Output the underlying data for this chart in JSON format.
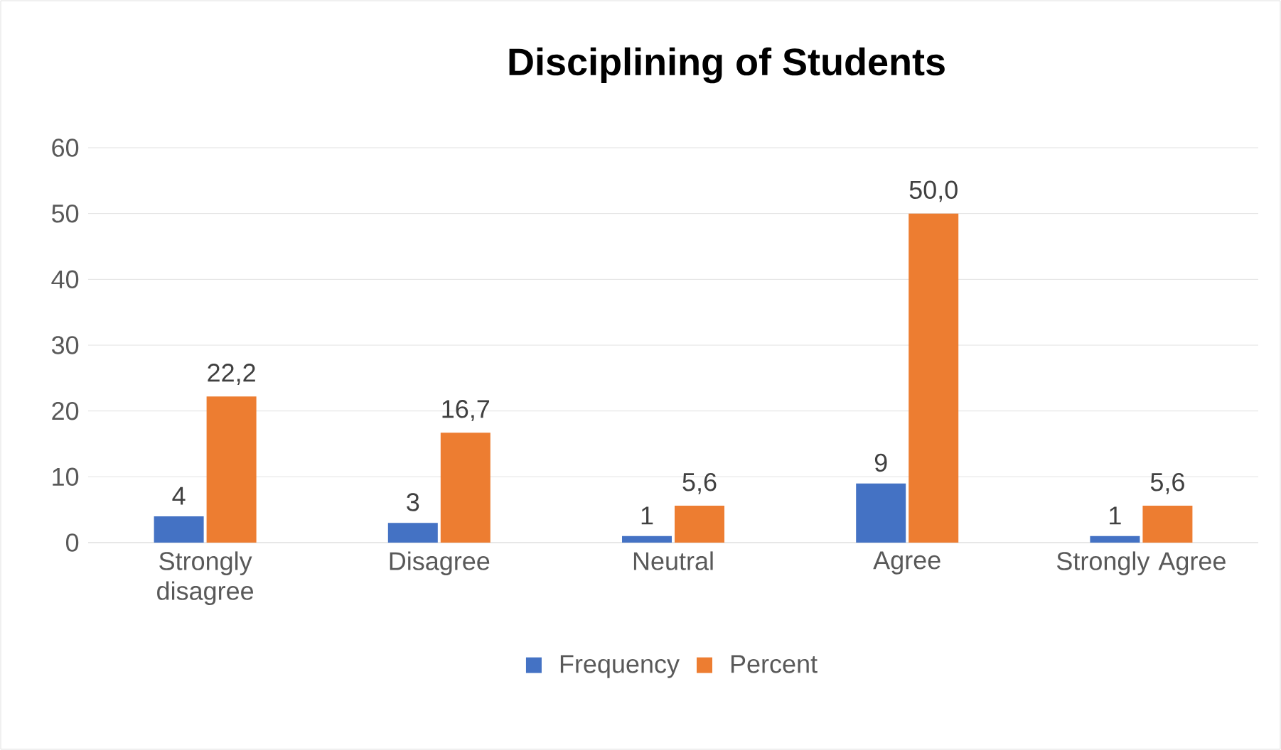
{
  "chart_data": {
    "type": "bar",
    "title": "Disciplining of Students",
    "categories": [
      "Strongly disagree",
      "Disagree",
      "Neutral",
      "Agree",
      "Strongly Agree"
    ],
    "series": [
      {
        "name": "Frequency",
        "color": "#4472c4",
        "values": [
          4,
          3,
          1,
          9,
          1
        ],
        "value_labels": [
          "4",
          "3",
          "1",
          "9",
          "1"
        ]
      },
      {
        "name": "Percent",
        "color": "#ed7d31",
        "values": [
          22.2,
          16.7,
          5.6,
          50.0,
          5.6
        ],
        "value_labels": [
          "22,2",
          "16,7",
          "5,6",
          "50,0",
          "5,6"
        ]
      }
    ],
    "ylim": [
      0,
      60
    ],
    "yticks": [
      0,
      10,
      20,
      30,
      40,
      50,
      60
    ],
    "grid": "y",
    "legend": "bottom"
  }
}
